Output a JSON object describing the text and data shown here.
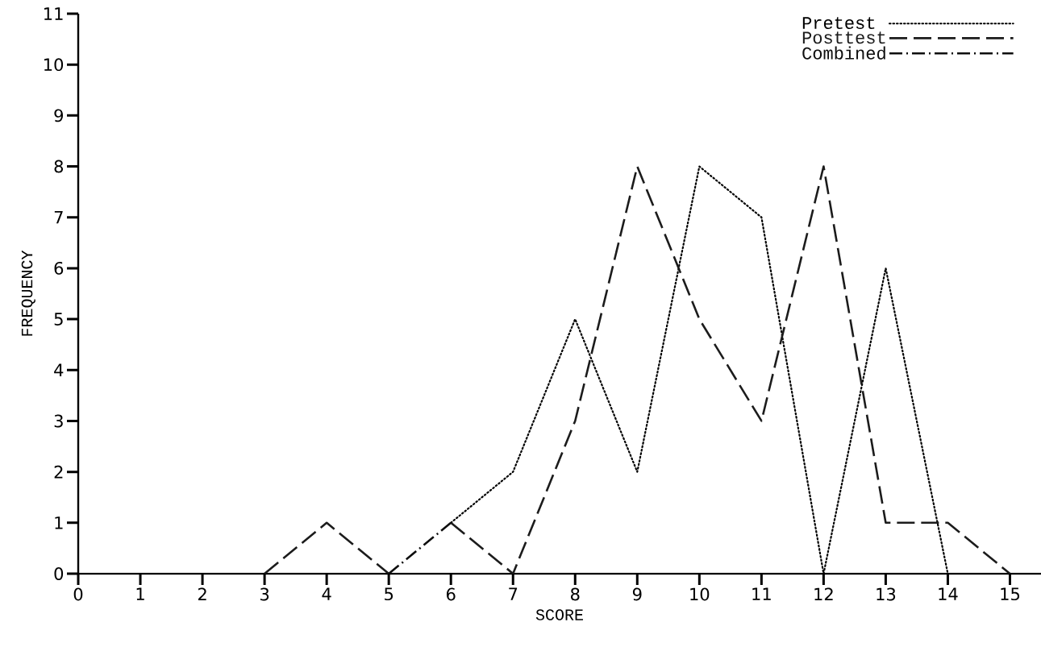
{
  "chart_data": {
    "type": "line",
    "xlabel": "SCORE",
    "ylabel": "FREQUENCY",
    "xlim": [
      0,
      15.5
    ],
    "ylim": [
      0,
      11
    ],
    "xticks": [
      0,
      1,
      2,
      3,
      4,
      5,
      6,
      7,
      8,
      9,
      10,
      11,
      12,
      13,
      14,
      15
    ],
    "yticks": [
      0,
      1,
      2,
      3,
      4,
      5,
      6,
      7,
      8,
      9,
      10,
      11
    ],
    "legend": "top right",
    "marker": "none",
    "series": [
      {
        "name": "Pretest",
        "color": "#000000",
        "line_style": "dotted",
        "x": [
          6,
          7,
          8,
          9,
          10,
          11,
          12,
          13,
          14
        ],
        "values": [
          1,
          2,
          5,
          2,
          8,
          7,
          0,
          6,
          0
        ]
      },
      {
        "name": "Posttest",
        "color": "#1c1c1c",
        "line_style": "dashed",
        "x": [
          3,
          4,
          5,
          5.5,
          6,
          7,
          8,
          9,
          10,
          11,
          12,
          13,
          14,
          15
        ],
        "values": [
          0,
          1,
          0,
          null,
          1,
          0,
          3,
          8,
          5,
          3,
          8,
          1,
          1,
          0
        ]
      },
      {
        "name": "Combined",
        "color": "#0e0e0e",
        "line_style": "dashdot",
        "x": [
          5,
          6
        ],
        "values": [
          0,
          1
        ]
      }
    ]
  }
}
